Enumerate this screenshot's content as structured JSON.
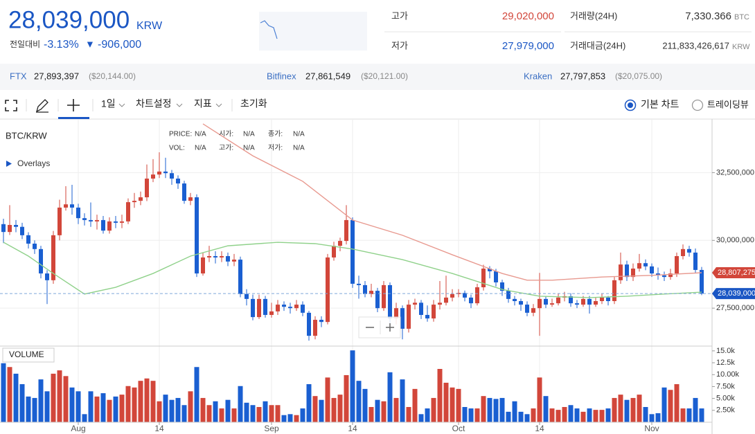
{
  "header": {
    "price": "28,039,000",
    "unit": "KRW",
    "change_label": "전일대비",
    "change_pct": "-3.13%",
    "arrow": "▼",
    "change_amount": "-906,000",
    "stats": [
      {
        "label": "고가",
        "value": "29,020,000"
      },
      {
        "label": "저가",
        "value": "27,979,000"
      },
      {
        "label": "거래량(24H)",
        "value": "7,330.366",
        "unit": "BTC"
      },
      {
        "label": "거래대금(24H)",
        "value": "211,833,426,617",
        "unit": "KRW"
      }
    ]
  },
  "exchanges": [
    {
      "name": "FTX",
      "price": "27,893,397",
      "usd": "($20,144.00)"
    },
    {
      "name": "Bitfinex",
      "price": "27,861,549",
      "usd": "($20,121.00)"
    },
    {
      "name": "Kraken",
      "price": "27,797,853",
      "usd": "($20,075.00)"
    }
  ],
  "toolbar": {
    "period": "1일",
    "settings": "차트설정",
    "indicators": "지표",
    "reset": "초기화",
    "views": [
      "기본 차트",
      "트레이딩뷰"
    ]
  },
  "chart_data": {
    "type": "candlestick",
    "symbol": "BTC/KRW",
    "overlays_label": "Overlays",
    "volume_title": "VOLUME",
    "legend_info": [
      {
        "label": "PRICE:",
        "value": "N/A"
      },
      {
        "label": "시가:",
        "value": "N/A"
      },
      {
        "label": "종가:",
        "value": "N/A"
      },
      {
        "label": "VOL:",
        "value": "N/A"
      },
      {
        "label": "고가:",
        "value": "N/A"
      },
      {
        "label": "저가:",
        "value": "N/A"
      }
    ],
    "up_color": "#d2463a",
    "down_color": "#1a5fd1",
    "open": [
      30600000,
      30310000,
      30570000,
      30500000,
      30190000,
      29880000,
      29680000,
      28780000,
      28530000,
      30190000,
      31210000,
      31330000,
      31210000,
      30820000,
      30750000,
      30700000,
      30750000,
      30360000,
      30700000,
      30650000,
      30700000,
      31410000,
      31460000,
      31590000,
      32280000,
      32430000,
      32540000,
      32480000,
      32280000,
      32100000,
      31460000,
      31590000,
      28780000,
      29370000,
      29420000,
      29370000,
      29420000,
      29220000,
      29290000,
      28020000,
      27840000,
      27170000,
      27840000,
      27250000,
      27380000,
      27630000,
      27550000,
      27500000,
      27630000,
      27330000,
      26480000,
      27070000,
      26990000,
      29370000,
      29800000,
      29980000,
      30750000,
      28400000,
      28350000,
      28020000,
      28140000,
      27500000,
      28350000,
      27120000,
      27500000,
      26740000,
      27630000,
      27700000,
      27250000,
      27120000,
      27630000,
      27700000,
      27890000,
      28020000,
      28060000,
      27890000,
      27680000,
      28270000,
      28960000,
      28860000,
      28450000,
      28140000,
      27840000,
      27760000,
      27630000,
      27330000,
      27500000,
      27840000,
      27630000,
      27680000,
      27890000,
      27940000,
      27680000,
      27630000,
      27840000,
      27630000,
      27760000,
      27890000,
      27760000,
      28530000,
      29110000,
      28650000,
      28960000,
      29160000,
      29040000,
      28780000,
      28710000,
      28650000,
      28780000,
      29420000,
      29680000,
      29550000,
      28910000
    ],
    "high": [
      30800000,
      31300000,
      30750000,
      30650000,
      30300000,
      30000000,
      29800000,
      28900000,
      30350000,
      31500000,
      32000000,
      32050000,
      31350000,
      31000000,
      31400000,
      30950000,
      30900000,
      30850000,
      30900000,
      30950000,
      31550000,
      31750000,
      31800000,
      32800000,
      33000000,
      33250000,
      33050000,
      32600000,
      32400000,
      32200000,
      31750000,
      31700000,
      29550000,
      29800000,
      29600000,
      29600000,
      29550000,
      29500000,
      29400000,
      28200000,
      28000000,
      28000000,
      27950000,
      27700000,
      27800000,
      27750000,
      27700000,
      27800000,
      27750000,
      27400000,
      27200000,
      27200000,
      29500000,
      29950000,
      30100000,
      31300000,
      30850000,
      28700000,
      28500000,
      28400000,
      28250000,
      28500000,
      28450000,
      27700000,
      27600000,
      27800000,
      27850000,
      27800000,
      27600000,
      27800000,
      28500000,
      28700000,
      28200000,
      28200000,
      28150000,
      28000000,
      28400000,
      29100000,
      29050000,
      28950000,
      28550000,
      28250000,
      27950000,
      27850000,
      27750000,
      27650000,
      28800000,
      27950000,
      27850000,
      28050000,
      28100000,
      28050000,
      27800000,
      27950000,
      27950000,
      27900000,
      28050000,
      27950000,
      28650000,
      29550000,
      29250000,
      29150000,
      29500000,
      29300000,
      29150000,
      29000000,
      28850000,
      28950000,
      29550000,
      29850000,
      29800000,
      29700000,
      29020000
    ],
    "low": [
      29900000,
      30200000,
      30300000,
      30050000,
      29700000,
      29500000,
      28600000,
      27650000,
      28400000,
      30000000,
      31100000,
      30950000,
      30600000,
      30550000,
      30500000,
      30400000,
      30250000,
      30250000,
      30450000,
      30450000,
      30600000,
      31200000,
      31300000,
      31450000,
      32150000,
      32300000,
      32300000,
      32050000,
      31900000,
      31350000,
      31300000,
      28650000,
      28700000,
      29200000,
      29150000,
      29200000,
      29050000,
      29050000,
      27900000,
      27600000,
      27050000,
      27100000,
      27150000,
      27150000,
      27250000,
      27400000,
      27300000,
      27400000,
      27200000,
      26300000,
      26350000,
      26800000,
      26900000,
      29250000,
      29600000,
      29850000,
      28250000,
      27850000,
      27900000,
      27900000,
      27350000,
      27400000,
      26800000,
      26900000,
      26350000,
      26600000,
      27450000,
      27100000,
      27000000,
      27000000,
      27450000,
      27600000,
      27750000,
      27900000,
      27750000,
      27500000,
      27600000,
      28150000,
      28600000,
      28300000,
      27950000,
      27700000,
      27600000,
      27400000,
      27200000,
      27200000,
      26480000,
      27500000,
      27550000,
      27600000,
      27750000,
      27550000,
      27500000,
      27550000,
      27300000,
      27550000,
      27650000,
      27600000,
      27650000,
      28400000,
      28500000,
      28500000,
      28850000,
      28900000,
      28650000,
      28550000,
      28500000,
      28550000,
      28650000,
      29300000,
      29400000,
      28800000,
      27979000
    ],
    "close": [
      30310000,
      30570000,
      30500000,
      30190000,
      29880000,
      29680000,
      28780000,
      28530000,
      30190000,
      31210000,
      31330000,
      31210000,
      30820000,
      30750000,
      30700000,
      30750000,
      30360000,
      30700000,
      30650000,
      30700000,
      31410000,
      31460000,
      31590000,
      32280000,
      32430000,
      32540000,
      32480000,
      32280000,
      32100000,
      31460000,
      31590000,
      28780000,
      29370000,
      29420000,
      29370000,
      29420000,
      29220000,
      29290000,
      28020000,
      27840000,
      27170000,
      27840000,
      27250000,
      27380000,
      27630000,
      27550000,
      27500000,
      27630000,
      27330000,
      26480000,
      27070000,
      26990000,
      29370000,
      29800000,
      29980000,
      30750000,
      28400000,
      28350000,
      28020000,
      28140000,
      27500000,
      28350000,
      27120000,
      27500000,
      26740000,
      27630000,
      27700000,
      27250000,
      27120000,
      27630000,
      27700000,
      27890000,
      28020000,
      28060000,
      27890000,
      27680000,
      28270000,
      28960000,
      28860000,
      28450000,
      28140000,
      27840000,
      27760000,
      27630000,
      27330000,
      27500000,
      27840000,
      27630000,
      27680000,
      27890000,
      27940000,
      27680000,
      27630000,
      27840000,
      27630000,
      27760000,
      27890000,
      27760000,
      28530000,
      29110000,
      28650000,
      28960000,
      29160000,
      29040000,
      28780000,
      28710000,
      28650000,
      28780000,
      29420000,
      29680000,
      29550000,
      28910000,
      28039000
    ],
    "close_label": "28,039,000",
    "volume": [
      12400,
      11600,
      10200,
      8000,
      5400,
      5100,
      9000,
      6500,
      10200,
      10900,
      9700,
      7300,
      6500,
      1700,
      6500,
      5400,
      6100,
      4700,
      5400,
      5800,
      7600,
      7300,
      8700,
      9200,
      8700,
      4400,
      5800,
      4700,
      5100,
      3600,
      6500,
      11600,
      5100,
      3600,
      4400,
      2900,
      4700,
      2900,
      7600,
      4100,
      3600,
      3200,
      4400,
      3600,
      3600,
      1500,
      1700,
      1500,
      2900,
      8000,
      5500,
      4700,
      9400,
      5100,
      5800,
      9900,
      15100,
      8700,
      7000,
      3200,
      4700,
      4400,
      10500,
      5100,
      9000,
      3200,
      7000,
      1700,
      2900,
      5100,
      11200,
      8300,
      7300,
      7000,
      3200,
      2900,
      2900,
      5500,
      5100,
      4900,
      5100,
      2200,
      4400,
      2200,
      1700,
      2900,
      9400,
      5500,
      2900,
      2600,
      3200,
      3600,
      2900,
      2200,
      2900,
      2600,
      2600,
      2900,
      5100,
      5800,
      4700,
      5100,
      5800,
      3200,
      1700,
      1900,
      7300,
      6800,
      8000,
      2900,
      2900,
      5100,
      2900
    ],
    "moving_averages": [
      {
        "color": "#e8998f",
        "x": [
          32,
          40,
          48,
          56,
          64,
          72,
          80,
          84,
          88,
          96,
          104,
          112
        ],
        "values": [
          34300000,
          33120000,
          32180000,
          30750000,
          30190000,
          29470000,
          28780000,
          28530000,
          28530000,
          28650000,
          28710000,
          28807275
        ],
        "last_label": "28,807,275"
      },
      {
        "color": "#8fd18a",
        "x": [
          0,
          4,
          8,
          13,
          18,
          24,
          30,
          36,
          44,
          50,
          56,
          64,
          72,
          80,
          86,
          94,
          100,
          106,
          112
        ],
        "values": [
          29930000,
          29420000,
          28780000,
          28020000,
          28270000,
          28780000,
          29420000,
          29800000,
          29930000,
          29880000,
          29680000,
          29290000,
          28780000,
          28190000,
          27940000,
          27890000,
          27940000,
          28020000,
          28090000
        ]
      }
    ],
    "ylim": [
      26100000,
      34400000
    ],
    "yticks": [
      {
        "value": 27500000,
        "label": "27,500,000"
      },
      {
        "value": 30000000,
        "label": "30,000,000"
      },
      {
        "value": 32500000,
        "label": "32,500,000"
      }
    ],
    "volume_ylim": [
      0,
      16000
    ],
    "volume_ticks": [
      {
        "value": 2500,
        "label": "2.50k"
      },
      {
        "value": 5000,
        "label": "5.00k"
      },
      {
        "value": 7500,
        "label": "7.50k"
      },
      {
        "value": 10000,
        "label": "10.00k"
      },
      {
        "value": 12500,
        "label": "12.5k"
      },
      {
        "value": 15000,
        "label": "15.0k"
      }
    ],
    "xticks": [
      {
        "value": 12,
        "label": "Aug"
      },
      {
        "value": 25,
        "label": "14"
      },
      {
        "value": 43,
        "label": "Sep"
      },
      {
        "value": 56,
        "label": "14"
      },
      {
        "value": 73,
        "label": "Oct"
      },
      {
        "value": 86,
        "label": "14"
      },
      {
        "value": 104,
        "label": "Nov"
      }
    ],
    "grid": true
  }
}
